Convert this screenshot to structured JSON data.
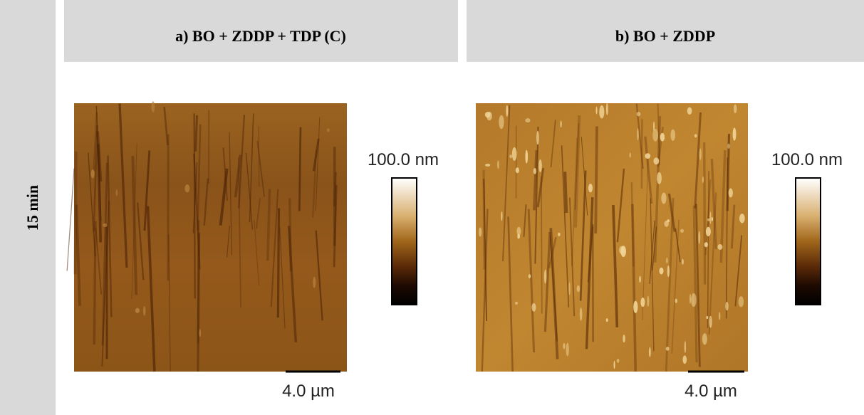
{
  "row_label": "15 min",
  "panels": [
    {
      "title": "a) BO + ZDDP + TDP (C)",
      "colorbar_label": "100.0 nm",
      "scale_label": "4.0 µm"
    },
    {
      "title": "b) BO + ZDDP",
      "colorbar_label": "100.0 nm",
      "scale_label": "4.0 µm"
    }
  ]
}
